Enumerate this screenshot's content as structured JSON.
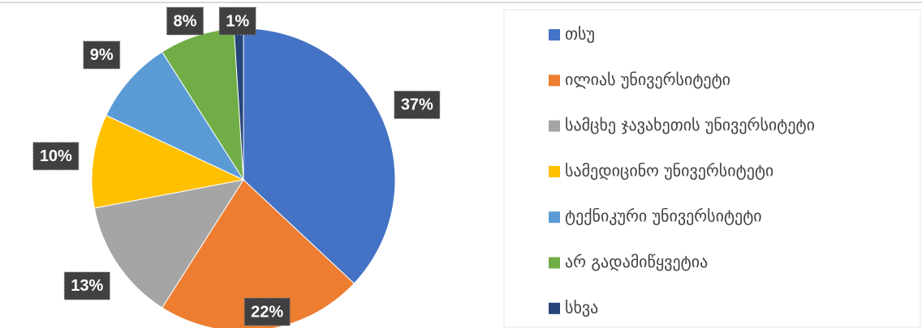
{
  "chart_data": {
    "type": "pie",
    "categories": [
      "თსუ",
      "ილიას უნივერსიტეტი",
      "სამცხე ჯავახეთის უნივერსიტეტი",
      "სამედიცინო უნივერსიტეტი",
      "ტექნიკური უნივერსიტეტი",
      "არ გადამიწყვეტია",
      "სხვა"
    ],
    "values": [
      37,
      22,
      13,
      10,
      9,
      8,
      1
    ],
    "value_labels": [
      "37%",
      "22%",
      "13%",
      "10%",
      "9%",
      "8%",
      "1%"
    ],
    "colors": [
      "#4472c4",
      "#ed7d31",
      "#a5a5a5",
      "#ffc000",
      "#5b9bd5",
      "#70ad47",
      "#264478"
    ],
    "legend": "right"
  }
}
